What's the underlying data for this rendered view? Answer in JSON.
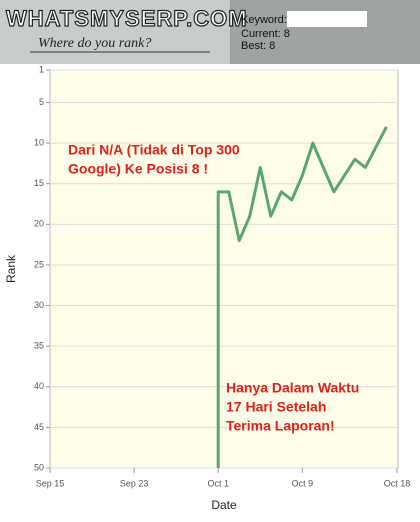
{
  "header": {
    "logo": "WHATSMYSERP.COM",
    "tagline": "Where do you rank?",
    "keyword_label": "Keyword:",
    "current": "Current: 8",
    "best": "Best: 8"
  },
  "chart_data": {
    "type": "line",
    "x": [
      274,
      274,
      275,
      276,
      277,
      278,
      279,
      280,
      281,
      282,
      283,
      285,
      286,
      287,
      288,
      290
    ],
    "series": [
      {
        "name": "Rank",
        "color": "#5ba56f",
        "values": [
          50,
          16,
          16,
          22,
          19,
          13,
          19,
          16,
          17,
          14,
          10,
          16,
          14,
          12,
          13,
          8
        ]
      }
    ],
    "xlim": [
      258,
      291.1
    ],
    "xticks": [
      {
        "value": 258,
        "label": "Sep 15"
      },
      {
        "value": 266,
        "label": "Sep 23"
      },
      {
        "value": 274,
        "label": "Oct 1"
      },
      {
        "value": 282,
        "label": "Oct 9"
      },
      {
        "value": 291,
        "label": "Oct 18"
      }
    ],
    "ylim": [
      1,
      50
    ],
    "y_reversed": true,
    "yticks": [
      1,
      5,
      10,
      15,
      20,
      25,
      30,
      35,
      40,
      45,
      50
    ],
    "grid": true,
    "x_label": "Date",
    "y_label": "Rank",
    "annotations": [
      [
        "Dari N/A (Tidak di Top 300",
        "Google) Ke Posisi 8 !"
      ],
      [
        "Hanya Dalam Waktu",
        "17 Hari Setelah",
        "Terima Laporan!"
      ]
    ],
    "annotation_color": "#e0201c"
  }
}
